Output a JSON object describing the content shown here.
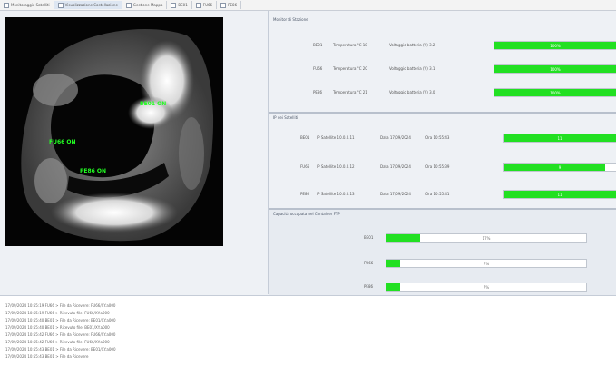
{
  "tabs": [
    {
      "label": "Monitoraggio Satelliti"
    },
    {
      "label": "Visualizzazione Costellazione"
    },
    {
      "label": "Gestione Mappa"
    },
    {
      "label": "BE01"
    },
    {
      "label": "FU66"
    },
    {
      "label": "PE86"
    }
  ],
  "map": {
    "labels": [
      {
        "text": "BE01 ON"
      },
      {
        "text": "FU66 ON"
      },
      {
        "text": "PE86 ON"
      }
    ]
  },
  "temperature_panel": {
    "title": "Monitor di Stazione",
    "rows": [
      {
        "id": "BE01",
        "temp": "Temperatura °C 18",
        "voltage": "Voltaggio batteria (V) 3.2",
        "percent": 100,
        "label": "100%"
      },
      {
        "id": "FU66",
        "temp": "Temperatura °C 20",
        "voltage": "Voltaggio batteria (V) 3.1",
        "percent": 100,
        "label": "100%"
      },
      {
        "id": "PE86",
        "temp": "Temperatura °C 21",
        "voltage": "Voltaggio batteria (V) 3.0",
        "percent": 100,
        "label": "100%"
      }
    ]
  },
  "satellite_panel": {
    "title": "IP dei Satelliti",
    "rows": [
      {
        "id": "BE01",
        "ip": "IP Satellite 10.0.0.11",
        "date": "Data 17/09/2024",
        "time": "Ora 10:55:43",
        "percent": 100,
        "label": "11"
      },
      {
        "id": "FU66",
        "ip": "IP Satellite 10.0.0.12",
        "date": "Data 17/09/2024",
        "time": "Ora 10:55:39",
        "percent": 90,
        "label": "9"
      },
      {
        "id": "PE86",
        "ip": "IP Satellite 10.0.0.13",
        "date": "Data 17/09/2024",
        "time": "Ora 10:55:41",
        "percent": 100,
        "label": "11"
      }
    ]
  },
  "capacity_panel": {
    "title": "Capacità occupata nei Container FTP",
    "rows": [
      {
        "id": "BE01",
        "percent": 17,
        "label": "17%"
      },
      {
        "id": "FU66",
        "percent": 7,
        "label": "7%"
      },
      {
        "id": "PE86",
        "percent": 7,
        "label": "7%"
      }
    ]
  },
  "log": [
    "17/09/2024 10:55:19 FU66 > File da Ricevere: FU66/XY.a000",
    "17/09/2024 10:55:19 FU66 > Ricevuto file: FU66/XY.a000",
    "17/09/2024 10:55:40 BE01 > File da Ricevere: BE01/XY.a000",
    "17/09/2024 10:55:40 BE01 > Ricevuto file: BE01/XY.a000",
    "17/09/2024 10:55:42 FU66 > File da Ricevere: FU66/XY.a000",
    "17/09/2024 10:55:42 FU66 > Ricevuto file: FU66/XY.a000",
    "17/09/2024 10:55:43 BE01 > File da Ricevere: BE01/XY.a000",
    "17/09/2024 10:55:43 BE01 > File da Ricevere"
  ],
  "colors": {
    "fill": "#22e022",
    "map_label": "#22ff22"
  }
}
